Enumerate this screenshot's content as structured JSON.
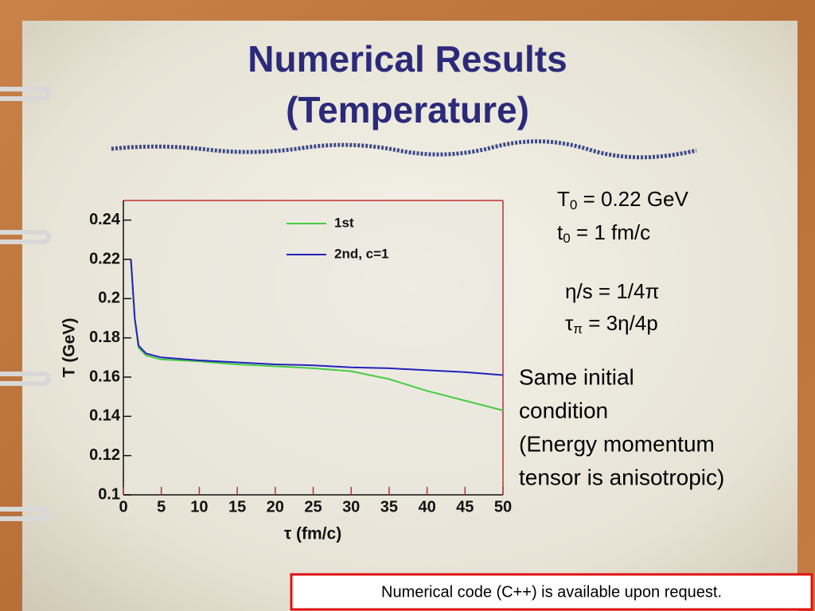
{
  "title": [
    "Numerical Results",
    "(Temperature)"
  ],
  "params": [
    {
      "text": "T",
      "sub": "0",
      "rest": " = 0.22 GeV"
    },
    {
      "text": "t",
      "sub": "0",
      "rest": " = 1 fm/c"
    },
    {
      "text": "η/s = 1/4π"
    },
    {
      "text": "τ",
      "sub": "π",
      "rest": " = 3η/4p"
    }
  ],
  "notes": [
    "Same initial",
    "condition",
    "(Energy momentum",
    "tensor is anisotropic)"
  ],
  "footer": "Numerical code (C++) is available upon request.",
  "chart_data": {
    "type": "line",
    "x_label": "τ (fm/c)",
    "y_label": "T (GeV)",
    "x": [
      1,
      1.5,
      2,
      3,
      5,
      10,
      15,
      20,
      25,
      30,
      35,
      40,
      45,
      50
    ],
    "series": [
      {
        "name": "1st",
        "color": "#44cc44",
        "values": [
          0.22,
          0.19,
          0.175,
          0.171,
          0.169,
          0.168,
          0.1665,
          0.1655,
          0.1645,
          0.163,
          0.159,
          0.153,
          0.148,
          0.143
        ]
      },
      {
        "name": "2nd, c=1",
        "color": "#2222bb",
        "values": [
          0.22,
          0.19,
          0.176,
          0.172,
          0.17,
          0.1685,
          0.1675,
          0.1665,
          0.166,
          0.165,
          0.1645,
          0.1635,
          0.1625,
          0.161
        ]
      }
    ],
    "xlim": [
      0,
      50
    ],
    "xticks": [
      0,
      5,
      10,
      15,
      20,
      25,
      30,
      35,
      40,
      45,
      50
    ],
    "ylim": [
      0.1,
      0.25
    ],
    "yticks": [
      0.1,
      0.12,
      0.14,
      0.16,
      0.18,
      0.2,
      0.22,
      0.24
    ]
  }
}
